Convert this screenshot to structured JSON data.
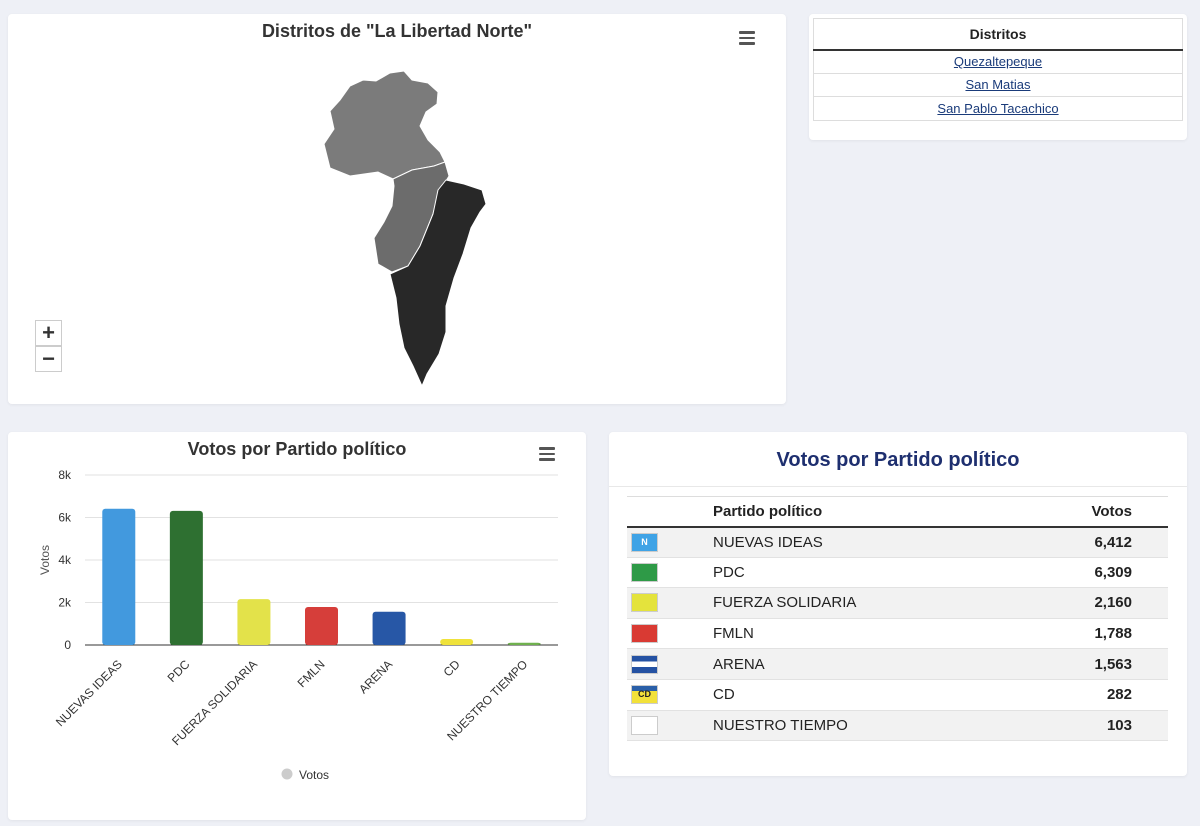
{
  "map": {
    "title": "Distritos de \"La Libertad Norte\"",
    "zoom_in": "+",
    "zoom_out": "−",
    "region_colors": [
      "#7b7b7b",
      "#6c6c6c",
      "#282828"
    ]
  },
  "districts": {
    "header": "Distritos",
    "items": [
      "Quezaltepeque",
      "San Matias",
      "San Pablo Tacachico"
    ]
  },
  "chart_data": {
    "type": "bar",
    "title": "Votos por Partido político",
    "categories": [
      "NUEVAS IDEAS",
      "PDC",
      "FUERZA SOLIDARIA",
      "FMLN",
      "ARENA",
      "CD",
      "NUESTRO TIEMPO"
    ],
    "series": [
      {
        "name": "Votos",
        "values": [
          6412,
          6309,
          2160,
          1788,
          1563,
          282,
          103
        ]
      }
    ],
    "colors": [
      "#4299de",
      "#2e7031",
      "#e3e24a",
      "#d63e3a",
      "#2757a6",
      "#efe23b",
      "#6fb04e"
    ],
    "ylabel": "Votos",
    "xlabel": "",
    "ylim": [
      0,
      8000
    ],
    "yticks": [
      "0",
      "2k",
      "4k",
      "6k",
      "8k"
    ],
    "legend": "bottom",
    "grid": true
  },
  "results": {
    "title": "Votos por Partido político",
    "col_party": "Partido político",
    "col_votes": "Votos",
    "rows": [
      {
        "party": "NUEVAS IDEAS",
        "votes": "6,412",
        "logo": "nuevas-ideas-logo",
        "logo_text": "N"
      },
      {
        "party": "PDC",
        "votes": "6,309",
        "logo": "pdc-logo",
        "logo_text": ""
      },
      {
        "party": "FUERZA SOLIDARIA",
        "votes": "2,160",
        "logo": "fuerza-solidaria-logo",
        "logo_text": ""
      },
      {
        "party": "FMLN",
        "votes": "1,788",
        "logo": "fmln-logo",
        "logo_text": ""
      },
      {
        "party": "ARENA",
        "votes": "1,563",
        "logo": "arena-logo",
        "logo_text": ""
      },
      {
        "party": "CD",
        "votes": "282",
        "logo": "cd-logo",
        "logo_text": "CD"
      },
      {
        "party": "NUESTRO TIEMPO",
        "votes": "103",
        "logo": "nuestro-tiempo-logo",
        "logo_text": ""
      }
    ]
  }
}
